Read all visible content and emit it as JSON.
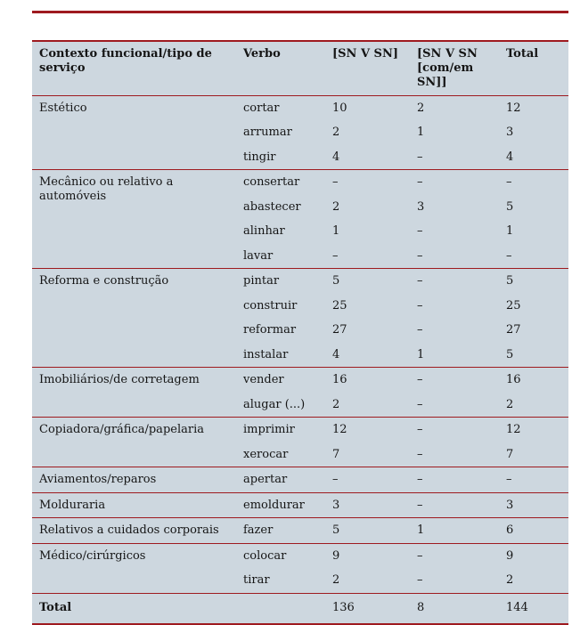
{
  "colors": {
    "table_background": "#cdd7df",
    "rule_red": "#9e1a1f",
    "text": "#151515",
    "page_background": "#ffffff"
  },
  "table": {
    "headers": [
      "Contexto funcional/tipo de serviço",
      "Verbo",
      "[SN V SN]",
      "[SN V SN [com/em SN]]",
      "Total"
    ],
    "groups": [
      {
        "category": "Estético",
        "rows": [
          [
            "cortar",
            "10",
            "2",
            "12"
          ],
          [
            "arrumar",
            "2",
            "1",
            "3"
          ],
          [
            "tingir",
            "4",
            "–",
            "4"
          ]
        ]
      },
      {
        "category": "Mecânico ou relativo a automóveis",
        "rows": [
          [
            "consertar",
            "–",
            "–",
            "–"
          ],
          [
            "abastecer",
            "2",
            "3",
            "5"
          ],
          [
            "alinhar",
            "1",
            "–",
            "1"
          ],
          [
            "lavar",
            "–",
            "–",
            "–"
          ]
        ]
      },
      {
        "category": "Reforma e construção",
        "rows": [
          [
            "pintar",
            "5",
            "–",
            "5"
          ],
          [
            "construir",
            "25",
            "–",
            "25"
          ],
          [
            "reformar",
            "27",
            "–",
            "27"
          ],
          [
            "instalar",
            "4",
            "1",
            "5"
          ]
        ]
      },
      {
        "category": "Imobiliários/de corretagem",
        "rows": [
          [
            "vender",
            "16",
            "–",
            "16"
          ],
          [
            "alugar (...)",
            "2",
            "–",
            "2"
          ]
        ]
      },
      {
        "category": "Copiadora/gráfica/papelaria",
        "rows": [
          [
            "imprimir",
            "12",
            "–",
            "12"
          ],
          [
            "xerocar",
            "7",
            "–",
            "7"
          ]
        ]
      },
      {
        "category": "Aviamentos/reparos",
        "rows": [
          [
            "apertar",
            "–",
            "–",
            "–"
          ]
        ]
      },
      {
        "category": "Molduraria",
        "rows": [
          [
            "emoldurar",
            "3",
            "–",
            "3"
          ]
        ]
      },
      {
        "category": "Relativos a cuidados corporais",
        "rows": [
          [
            "fazer",
            "5",
            "1",
            "6"
          ]
        ]
      },
      {
        "category": "Médico/cirúrgicos",
        "rows": [
          [
            "colocar",
            "9",
            "–",
            "9"
          ],
          [
            "tirar",
            "2",
            "–",
            "2"
          ]
        ]
      }
    ],
    "total_row": {
      "label": "Total",
      "values": [
        "136",
        "8",
        "144"
      ]
    }
  }
}
